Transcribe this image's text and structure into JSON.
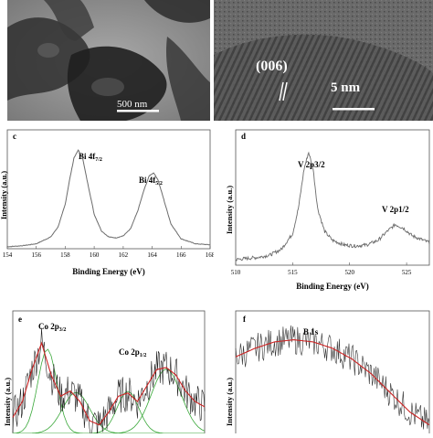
{
  "panels": {
    "a": {
      "scale_label": "500 nm"
    },
    "b": {
      "scale_label": "5 nm",
      "plane_label": "(006)"
    },
    "c": {
      "letter": "c",
      "ylabel": "Intensity (a.u.)",
      "xlabel": "Binding Energy (eV)",
      "xticks": [
        "154",
        "156",
        "158",
        "160",
        "162",
        "164",
        "166",
        "168"
      ],
      "peak1": "Bi 4f",
      "peak1_sub": "7/2",
      "peak2": "Bi 4f",
      "peak2_sub": "5/2"
    },
    "d": {
      "letter": "d",
      "ylabel": "Intensity (a.u.)",
      "xlabel": "Binding Energy (eV)",
      "xticks": [
        "510",
        "515",
        "520",
        "525"
      ],
      "peak1": "V 2p3/2",
      "peak2": "V 2p1/2"
    },
    "e": {
      "letter": "e",
      "ylabel": "Intensity (a.u.)",
      "peak1": "Co 2p",
      "peak1_sub": "3/2",
      "peak2": "Co 2p",
      "peak2_sub": "1/2"
    },
    "f": {
      "letter": "f",
      "ylabel": "Intensity (a.u.)",
      "peak1": "B 1s"
    }
  },
  "colors": {
    "spectrum": "#6b6b6b",
    "fit_red": "#cc2222",
    "fit_green": "#3aa83a",
    "tem_dark": "#2a2a2a"
  },
  "chart_data": [
    {
      "panel": "c",
      "type": "line",
      "x": [
        154,
        155,
        156,
        157,
        157.5,
        158,
        158.3,
        158.6,
        158.9,
        159.2,
        159.5,
        160,
        160.5,
        161,
        161.5,
        162,
        162.5,
        163,
        163.4,
        163.8,
        164.1,
        164.4,
        164.8,
        165.3,
        166,
        167,
        168
      ],
      "y": [
        0.02,
        0.03,
        0.05,
        0.12,
        0.22,
        0.45,
        0.7,
        0.92,
        1.0,
        0.92,
        0.7,
        0.35,
        0.18,
        0.12,
        0.11,
        0.13,
        0.2,
        0.38,
        0.58,
        0.74,
        0.77,
        0.7,
        0.5,
        0.25,
        0.1,
        0.05,
        0.04
      ],
      "xlim": [
        154,
        168
      ],
      "ylim": [
        0,
        1.15
      ]
    },
    {
      "panel": "d",
      "type": "line",
      "x": [
        510,
        511,
        512,
        513,
        514,
        515,
        515.5,
        516,
        516.4,
        516.8,
        517.2,
        517.8,
        518.5,
        519.5,
        520.5,
        521.5,
        522.5,
        523.3,
        524,
        524.7,
        525.5,
        526.5,
        527
      ],
      "y": [
        0.05,
        0.06,
        0.07,
        0.09,
        0.14,
        0.28,
        0.5,
        0.85,
        1.0,
        0.85,
        0.5,
        0.3,
        0.22,
        0.18,
        0.17,
        0.18,
        0.22,
        0.3,
        0.36,
        0.33,
        0.26,
        0.22,
        0.2
      ],
      "xlim": [
        510,
        527
      ],
      "ylim": [
        0,
        1.15
      ]
    },
    {
      "panel": "e",
      "type": "line",
      "x": [
        0,
        0.05,
        0.1,
        0.15,
        0.2,
        0.25,
        0.3,
        0.35,
        0.4,
        0.45,
        0.5,
        0.55,
        0.6,
        0.65,
        0.7,
        0.75,
        0.8,
        0.85,
        0.9,
        0.95,
        1.0
      ],
      "y": [
        0.15,
        0.3,
        0.6,
        0.85,
        0.55,
        0.35,
        0.4,
        0.3,
        0.12,
        0.08,
        0.2,
        0.35,
        0.38,
        0.3,
        0.45,
        0.6,
        0.62,
        0.55,
        0.4,
        0.3,
        0.25
      ],
      "xlim": [
        0,
        1
      ],
      "ylim": [
        0,
        1.1
      ]
    },
    {
      "panel": "f",
      "type": "line",
      "x": [
        0,
        0.1,
        0.2,
        0.3,
        0.4,
        0.5,
        0.6,
        0.7,
        0.8,
        0.9,
        1.0
      ],
      "y": [
        0.72,
        0.8,
        0.86,
        0.88,
        0.86,
        0.8,
        0.7,
        0.56,
        0.38,
        0.2,
        0.08
      ],
      "xlim": [
        0,
        1
      ],
      "ylim": [
        0,
        1.1
      ]
    }
  ]
}
